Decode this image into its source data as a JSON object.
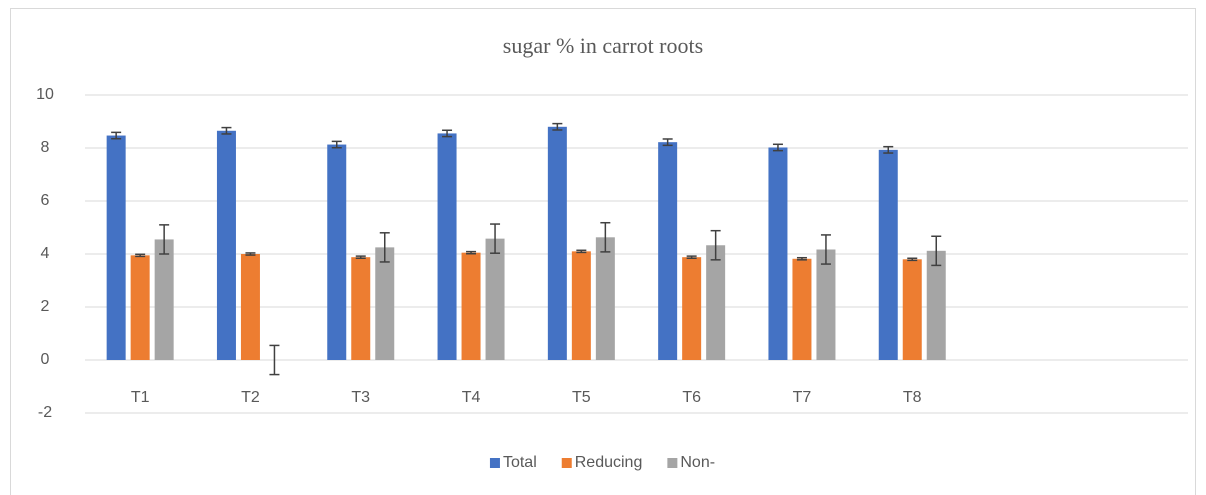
{
  "chart_data": {
    "type": "bar",
    "title": "sugar % in carrot roots",
    "categories": [
      "T1",
      "T2",
      "T3",
      "T4",
      "T5",
      "T6",
      "T7",
      "T8",
      null,
      null
    ],
    "series": [
      {
        "name": "Total",
        "color": "#4472c4",
        "values": [
          8.47,
          8.65,
          8.13,
          8.55,
          8.8,
          8.22,
          8.02,
          7.93,
          null,
          null
        ],
        "errors": [
          0.12,
          0.12,
          0.12,
          0.12,
          0.12,
          0.12,
          0.12,
          0.12,
          null,
          null
        ]
      },
      {
        "name": "Reducing",
        "color": "#ed7d31",
        "values": [
          3.95,
          4.0,
          3.88,
          4.05,
          4.1,
          3.88,
          3.82,
          3.8,
          null,
          null
        ],
        "errors": [
          0.04,
          0.04,
          0.04,
          0.04,
          0.04,
          0.04,
          0.04,
          0.04,
          null,
          null
        ]
      },
      {
        "name": "Non-",
        "color": "#a5a5a5",
        "values": [
          4.55,
          0,
          4.25,
          4.58,
          4.63,
          4.33,
          4.17,
          4.12,
          null,
          null
        ],
        "errors": [
          0.55,
          0.55,
          0.55,
          0.55,
          0.55,
          0.55,
          0.55,
          0.55,
          null,
          null
        ]
      }
    ],
    "ylim": [
      -2,
      10
    ],
    "yticks": [
      -2,
      0,
      2,
      4,
      6,
      8,
      10
    ],
    "grid": true,
    "legend": "bottom"
  }
}
